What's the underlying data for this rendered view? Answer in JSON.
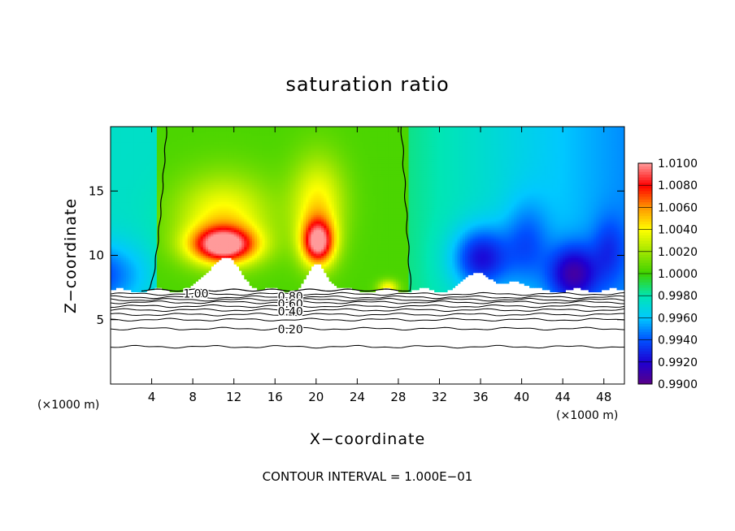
{
  "chart_data": {
    "type": "heatmap",
    "title": "saturation ratio",
    "xlabel": "X−coordinate",
    "ylabel": "Z−coordinate",
    "x_unit": "(×1000 m)",
    "z_unit": "(×1000 m)",
    "footer": "CONTOUR INTERVAL = 1.000E−01",
    "xlim": [
      0,
      50
    ],
    "ylim": [
      0,
      20
    ],
    "x_ticks": [
      4,
      8,
      12,
      16,
      20,
      24,
      28,
      32,
      36,
      40,
      44,
      48
    ],
    "x_tick_labels": [
      "4",
      "8",
      "12",
      "16",
      "20",
      "24",
      "28",
      "32",
      "36",
      "40",
      "44",
      "48"
    ],
    "y_ticks": [
      5,
      10,
      15
    ],
    "y_tick_labels": [
      "5",
      "10",
      "15"
    ],
    "colorbar": {
      "min": 0.99,
      "max": 1.01,
      "ticks": [
        0.99,
        0.992,
        0.994,
        0.996,
        0.998,
        1.0,
        1.002,
        1.004,
        1.006,
        1.008,
        1.01
      ],
      "tick_labels": [
        "0.9900",
        "0.9920",
        "0.9940",
        "0.9960",
        "0.9980",
        "1.0000",
        "1.0020",
        "1.0040",
        "1.0060",
        "1.0080",
        "1.0100"
      ],
      "colors": [
        "#5a0087",
        "#1e00d2",
        "#0050ff",
        "#00c8ff",
        "#00e6b4",
        "#3cd200",
        "#a0e600",
        "#ffff00",
        "#ff9600",
        "#ff0000",
        "#ff9a9a"
      ]
    },
    "contour_lines": [
      {
        "level": 1.0,
        "label": "1.00"
      },
      {
        "level": 0.8,
        "label": "0.80"
      },
      {
        "level": 0.6,
        "label": "0.60"
      },
      {
        "level": 0.4,
        "label": "0.40"
      },
      {
        "level": 0.2,
        "label": "0.20"
      }
    ],
    "grid": false
  }
}
